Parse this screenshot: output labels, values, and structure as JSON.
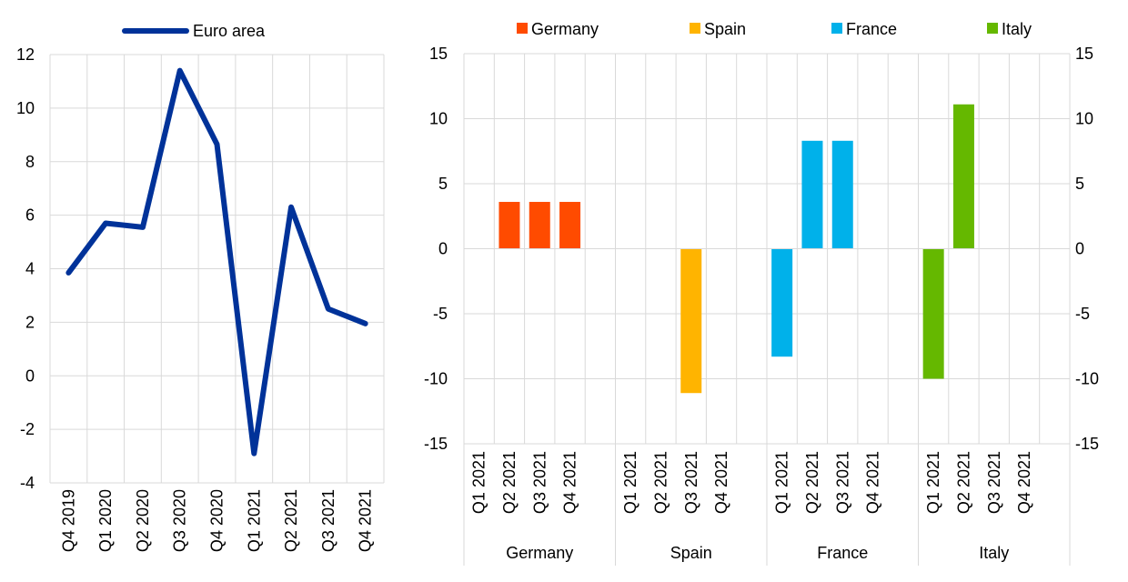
{
  "chart_data": [
    {
      "type": "line",
      "title": "",
      "xlabel": "",
      "ylabel": "",
      "categories": [
        "Q4 2019",
        "Q1 2020",
        "Q2 2020",
        "Q3 2020",
        "Q4 2020",
        "Q1 2021",
        "Q2 2021",
        "Q3 2021",
        "Q4 2021"
      ],
      "series": [
        {
          "name": "Euro area",
          "color": "#003299",
          "values": [
            3.85,
            5.7,
            5.55,
            11.4,
            8.65,
            -2.9,
            6.3,
            2.5,
            1.95
          ]
        }
      ],
      "ylim": [
        -4,
        12
      ],
      "yticks": [
        -4,
        -2,
        0,
        2,
        4,
        6,
        8,
        10,
        12
      ],
      "grid": true,
      "legend": "top"
    },
    {
      "type": "bar",
      "title": "",
      "xlabel": "",
      "ylabel": "",
      "quarters": [
        "Q1 2021",
        "Q2 2021",
        "Q3 2021",
        "Q4 2021"
      ],
      "series": [
        {
          "name": "Germany",
          "color": "#ff4b00",
          "values": [
            0,
            3.6,
            3.6,
            3.6
          ]
        },
        {
          "name": "Spain",
          "color": "#ffb400",
          "values": [
            0,
            0,
            -11.1,
            0
          ]
        },
        {
          "name": "France",
          "color": "#00b1ea",
          "values": [
            -8.3,
            8.3,
            8.3,
            0
          ]
        },
        {
          "name": "Italy",
          "color": "#65b800",
          "values": [
            -10.0,
            11.1,
            0,
            0
          ]
        }
      ],
      "ylim": [
        -15,
        15
      ],
      "yticks": [
        -15,
        -10,
        -5,
        0,
        5,
        10,
        15
      ],
      "grid": true,
      "legend": "top"
    }
  ]
}
